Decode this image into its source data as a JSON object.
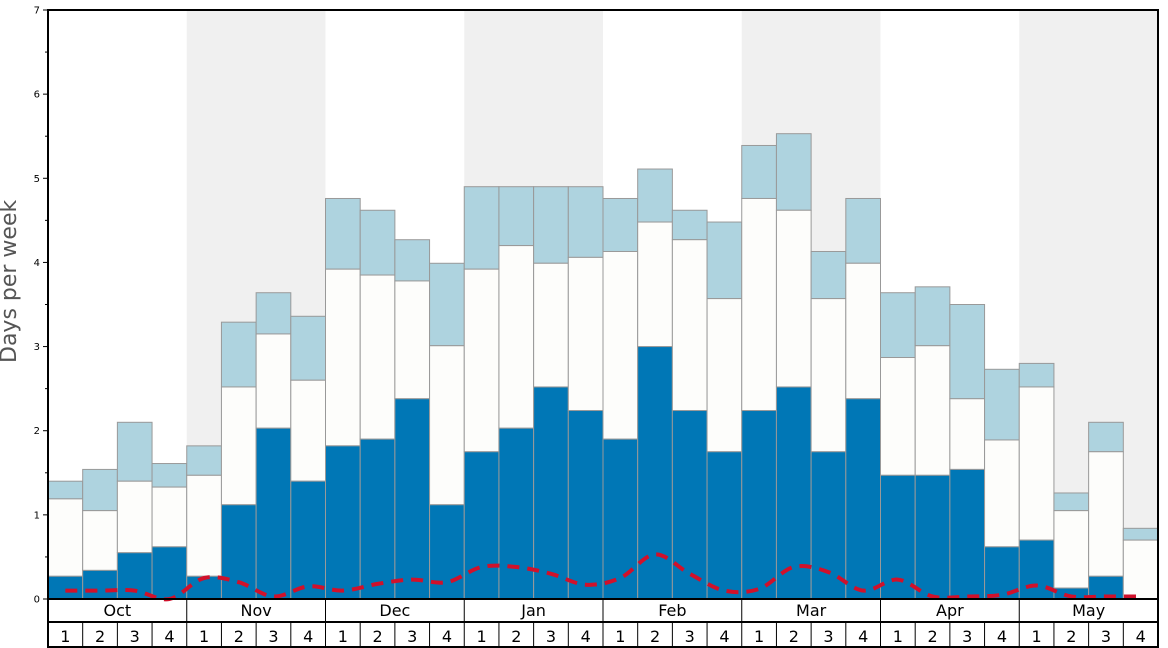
{
  "chart_data": {
    "type": "bar",
    "ylabel": "Days per week",
    "ylim": [
      0,
      7
    ],
    "yticks": [
      "0",
      "1",
      "2",
      "3",
      "4",
      "5",
      "6",
      "7"
    ],
    "months": [
      "Oct",
      "Nov",
      "Dec",
      "Jan",
      "Feb",
      "Mar",
      "Apr",
      "May"
    ],
    "weeks": [
      "1",
      "2",
      "3",
      "4"
    ],
    "colors": {
      "bottom": "#0077b6",
      "middle": "#fdfdfb",
      "top": "#aed3df",
      "line": "#d0112b",
      "shade": "#f0f0f0",
      "border": "#999999"
    },
    "series": [
      {
        "values": [
          0.27,
          0.34,
          0.55,
          0.62,
          0.27,
          1.12,
          2.03,
          1.4,
          1.82,
          1.9,
          2.38,
          1.12,
          1.75,
          2.03,
          2.52,
          2.24,
          1.9,
          3.0,
          2.24,
          1.75,
          2.24,
          2.52,
          1.75,
          2.38,
          1.47,
          1.47,
          1.54,
          0.62,
          0.7,
          0.13,
          0.27,
          0.0
        ]
      },
      {
        "values": [
          1.19,
          1.05,
          1.4,
          1.33,
          1.47,
          2.52,
          3.15,
          2.6,
          3.92,
          3.85,
          3.78,
          3.01,
          3.92,
          4.2,
          3.99,
          4.06,
          4.13,
          4.48,
          4.27,
          3.57,
          4.76,
          4.62,
          3.57,
          3.99,
          2.87,
          3.01,
          2.38,
          1.89,
          2.52,
          1.05,
          1.75,
          0.7
        ]
      },
      {
        "values": [
          1.4,
          1.54,
          2.1,
          1.61,
          1.82,
          3.29,
          3.64,
          3.36,
          4.76,
          4.62,
          4.27,
          3.99,
          4.9,
          4.9,
          4.9,
          4.9,
          4.76,
          5.11,
          4.62,
          4.48,
          5.39,
          5.53,
          4.13,
          4.76,
          3.64,
          3.71,
          3.5,
          2.73,
          2.8,
          1.26,
          2.1,
          0.84
        ]
      },
      {
        "values": [
          0.1,
          0.1,
          0.1,
          0.0,
          0.25,
          0.2,
          0.03,
          0.15,
          0.1,
          0.18,
          0.23,
          0.2,
          0.38,
          0.38,
          0.3,
          0.17,
          0.25,
          0.53,
          0.3,
          0.1,
          0.12,
          0.38,
          0.32,
          0.1,
          0.23,
          0.03,
          0.03,
          0.05,
          0.16,
          0.03,
          0.03,
          0.03
        ]
      }
    ]
  }
}
